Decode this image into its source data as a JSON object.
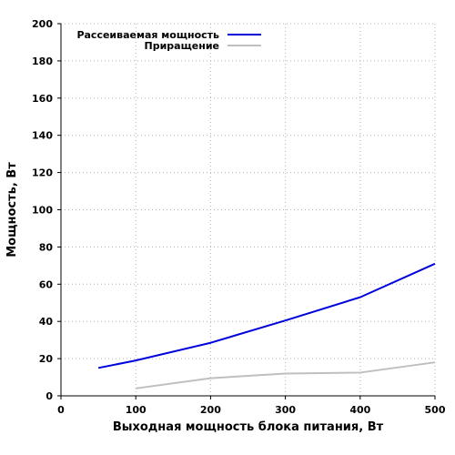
{
  "chart_data": {
    "type": "line",
    "xlabel": "Выходная мощность блока питания, Вт",
    "ylabel": "Мощность, Вт",
    "xlim": [
      0,
      500
    ],
    "ylim": [
      0,
      200
    ],
    "x_ticks": [
      "0",
      "100",
      "200",
      "300",
      "400",
      "500"
    ],
    "y_ticks": [
      "0",
      "20",
      "40",
      "60",
      "80",
      "100",
      "120",
      "140",
      "160",
      "180",
      "200"
    ],
    "grid": true,
    "legend_position": "top",
    "series": [
      {
        "name": "Рассеиваемая мощность",
        "color": "#0000dd",
        "points": [
          [
            50,
            15
          ],
          [
            100,
            19
          ],
          [
            200,
            28.5
          ],
          [
            300,
            40.5
          ],
          [
            400,
            53
          ],
          [
            500,
            71
          ]
        ]
      },
      {
        "name": "Приращение",
        "color": "#bfbfbf",
        "points": [
          [
            100,
            4
          ],
          [
            200,
            9.5
          ],
          [
            300,
            12
          ],
          [
            400,
            12.5
          ],
          [
            500,
            18
          ]
        ]
      }
    ]
  }
}
